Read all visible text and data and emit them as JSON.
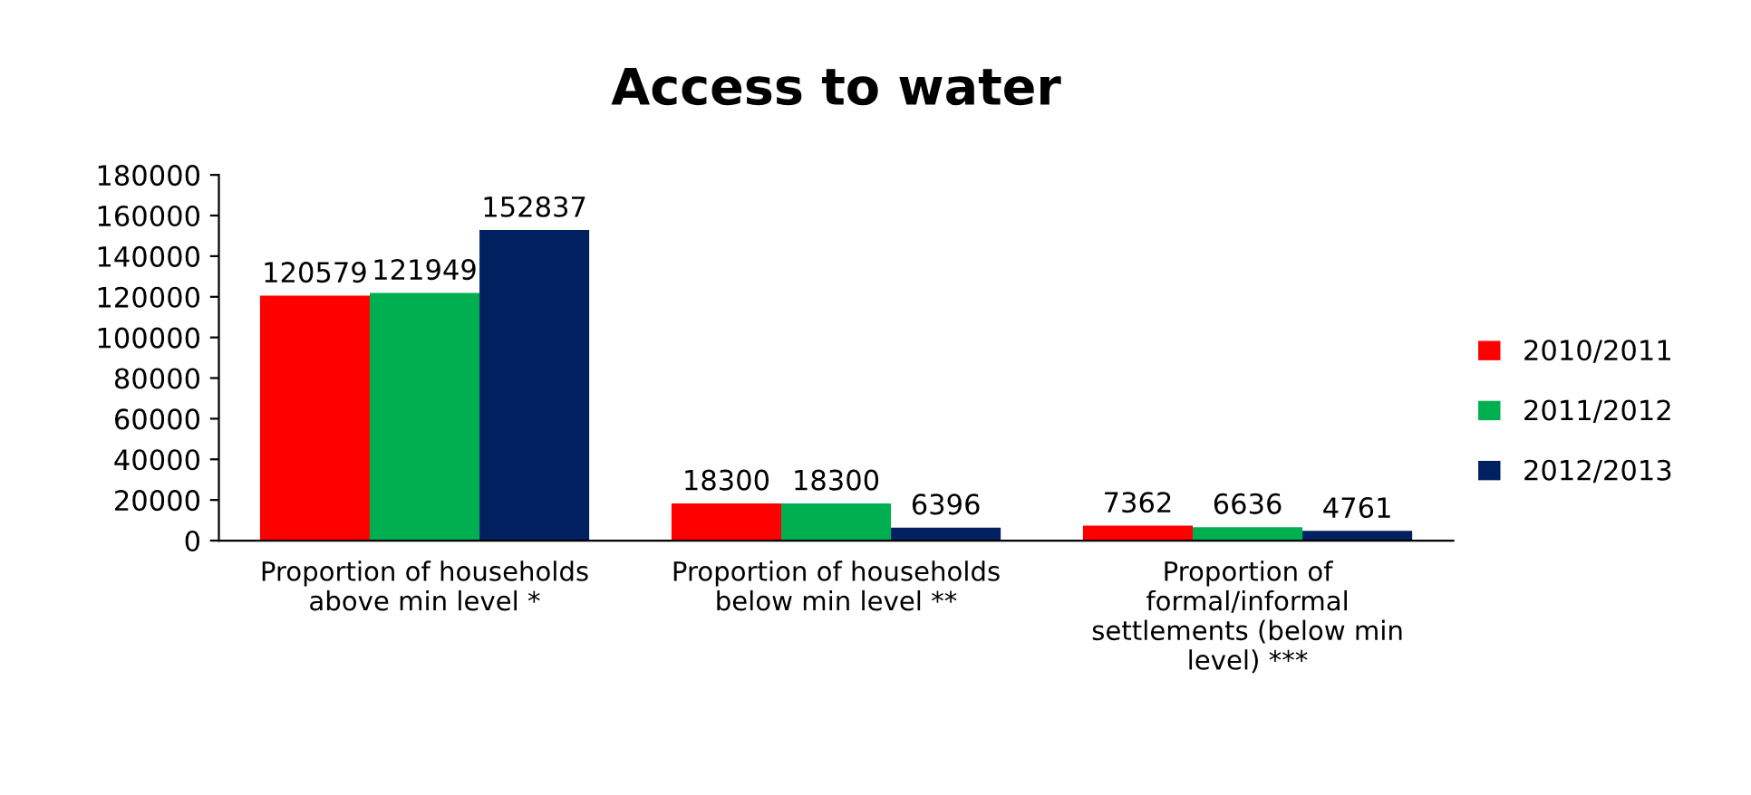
{
  "chart_data": {
    "type": "bar",
    "title": "Access to water",
    "categories": [
      "Proportion of households\nabove min level *",
      "Proportion of households\nbelow min level **",
      "Proportion of\nformal/informal\nsettlements (below min\nlevel) ***"
    ],
    "series": [
      {
        "name": "2010/2011",
        "color": "#ff0000",
        "values": [
          120579,
          18300,
          7362
        ]
      },
      {
        "name": "2011/2012",
        "color": "#00b050",
        "values": [
          121949,
          18300,
          6636
        ]
      },
      {
        "name": "2012/2013",
        "color": "#002060",
        "values": [
          152837,
          6396,
          4761
        ]
      }
    ],
    "ylim": [
      0,
      180000
    ],
    "yticks": [
      0,
      20000,
      40000,
      60000,
      80000,
      100000,
      120000,
      140000,
      160000,
      180000
    ],
    "data_labels": true,
    "grid": false,
    "legend": "right"
  }
}
